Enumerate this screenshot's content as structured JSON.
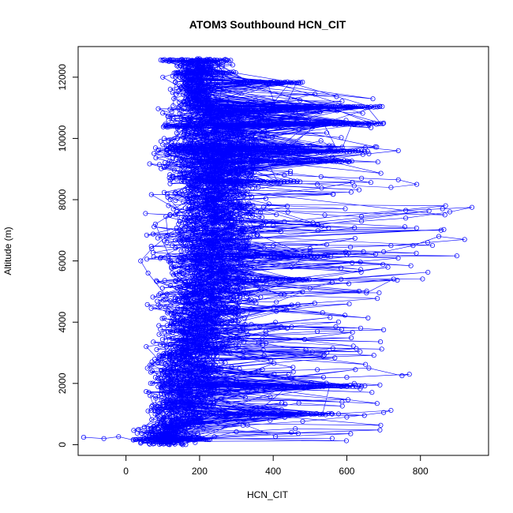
{
  "chart_data": {
    "type": "scatter",
    "title": "ATOM3 Southbound HCN_CIT",
    "xlabel": "HCN_CIT",
    "ylabel": "Altitude (m)",
    "xlim": [
      -130,
      985
    ],
    "ylim": [
      -350,
      13000
    ],
    "x_ticks": [
      0,
      200,
      400,
      600,
      800
    ],
    "y_ticks": [
      0,
      2000,
      4000,
      6000,
      8000,
      10000,
      12000
    ],
    "x_tick_labels": [
      "0",
      "200",
      "400",
      "600",
      "800"
    ],
    "y_tick_labels": [
      "0",
      "2000",
      "4000",
      "6000",
      "8000",
      "10000",
      "12000"
    ],
    "grid": false,
    "legend": false,
    "series": [
      {
        "marker": "open-circle-with-line",
        "color": "#0000ff",
        "points": [
          [
            -115,
            240
          ],
          [
            -60,
            200
          ],
          [
            -20,
            260
          ],
          [
            20,
            150
          ],
          [
            60,
            120
          ],
          [
            110,
            80
          ],
          [
            150,
            130
          ],
          [
            200,
            190
          ],
          [
            240,
            260
          ],
          [
            300,
            420
          ],
          [
            460,
            520
          ],
          [
            690,
            480
          ],
          [
            50,
            220
          ],
          [
            90,
            300
          ],
          [
            140,
            380
          ],
          [
            210,
            520
          ],
          [
            330,
            640
          ],
          [
            480,
            760
          ],
          [
            600,
            900
          ],
          [
            700,
            1050
          ],
          [
            720,
            1120
          ],
          [
            560,
            1000
          ],
          [
            420,
            950
          ],
          [
            300,
            980
          ],
          [
            200,
            930
          ],
          [
            120,
            870
          ],
          [
            70,
            820
          ],
          [
            60,
            1100
          ],
          [
            100,
            1300
          ],
          [
            160,
            1500
          ],
          [
            230,
            1650
          ],
          [
            330,
            1750
          ],
          [
            460,
            1850
          ],
          [
            600,
            1900
          ],
          [
            690,
            1950
          ],
          [
            620,
            2000
          ],
          [
            500,
            1950
          ],
          [
            390,
            1900
          ],
          [
            280,
            1880
          ],
          [
            180,
            1800
          ],
          [
            110,
            1700
          ],
          [
            80,
            2200
          ],
          [
            140,
            2300
          ],
          [
            230,
            2350
          ],
          [
            360,
            2400
          ],
          [
            520,
            2450
          ],
          [
            660,
            2500
          ],
          [
            750,
            2250
          ],
          [
            770,
            2300
          ],
          [
            600,
            2200
          ],
          [
            450,
            2150
          ],
          [
            300,
            2050
          ],
          [
            190,
            2000
          ],
          [
            70,
            2600
          ],
          [
            100,
            2900
          ],
          [
            150,
            3100
          ],
          [
            220,
            3300
          ],
          [
            300,
            3500
          ],
          [
            380,
            3700
          ],
          [
            450,
            3850
          ],
          [
            570,
            3850
          ],
          [
            700,
            3750
          ],
          [
            520,
            3700
          ],
          [
            380,
            3600
          ],
          [
            260,
            3500
          ],
          [
            160,
            3300
          ],
          [
            90,
            3600
          ],
          [
            130,
            4000
          ],
          [
            190,
            4300
          ],
          [
            270,
            4500
          ],
          [
            350,
            4700
          ],
          [
            430,
            4900
          ],
          [
            500,
            5100
          ],
          [
            560,
            5300
          ],
          [
            470,
            5400
          ],
          [
            380,
            5350
          ],
          [
            280,
            5200
          ],
          [
            190,
            5000
          ],
          [
            120,
            4700
          ],
          [
            60,
            5600
          ],
          [
            40,
            6000
          ],
          [
            70,
            6400
          ],
          [
            110,
            6800
          ],
          [
            160,
            7000
          ],
          [
            220,
            6900
          ],
          [
            300,
            6700
          ],
          [
            400,
            6500
          ],
          [
            500,
            6300
          ],
          [
            600,
            6200
          ],
          [
            700,
            6300
          ],
          [
            780,
            6500
          ],
          [
            850,
            6800
          ],
          [
            920,
            6700
          ],
          [
            820,
            6600
          ],
          [
            720,
            6500
          ],
          [
            610,
            6450
          ],
          [
            500,
            6400
          ],
          [
            400,
            6250
          ],
          [
            300,
            6050
          ],
          [
            200,
            5900
          ],
          [
            130,
            5800
          ],
          [
            80,
            7200
          ],
          [
            120,
            7500
          ],
          [
            180,
            7700
          ],
          [
            260,
            7800
          ],
          [
            350,
            7700
          ],
          [
            440,
            7600
          ],
          [
            540,
            7500
          ],
          [
            640,
            7450
          ],
          [
            760,
            7650
          ],
          [
            860,
            7700
          ],
          [
            940,
            7750
          ],
          [
            880,
            7600
          ],
          [
            760,
            7400
          ],
          [
            640,
            7300
          ],
          [
            520,
            7200
          ],
          [
            400,
            7150
          ],
          [
            290,
            7100
          ],
          [
            190,
            7050
          ],
          [
            120,
            8000
          ],
          [
            160,
            8300
          ],
          [
            230,
            8500
          ],
          [
            320,
            8600
          ],
          [
            420,
            8550
          ],
          [
            520,
            8500
          ],
          [
            620,
            8450
          ],
          [
            720,
            8400
          ],
          [
            790,
            8500
          ],
          [
            740,
            8650
          ],
          [
            640,
            8700
          ],
          [
            530,
            8750
          ],
          [
            430,
            8800
          ],
          [
            330,
            8850
          ],
          [
            240,
            8900
          ],
          [
            160,
            8850
          ],
          [
            110,
            9100
          ],
          [
            150,
            9300
          ],
          [
            210,
            9450
          ],
          [
            290,
            9550
          ],
          [
            380,
            9650
          ],
          [
            470,
            9700
          ],
          [
            560,
            9750
          ],
          [
            650,
            9700
          ],
          [
            740,
            9600
          ],
          [
            660,
            9500
          ],
          [
            560,
            9400
          ],
          [
            460,
            9300
          ],
          [
            360,
            9250
          ],
          [
            260,
            9200
          ],
          [
            170,
            9150
          ],
          [
            100,
            9800
          ],
          [
            140,
            10000
          ],
          [
            200,
            10200
          ],
          [
            280,
            10350
          ],
          [
            360,
            10450
          ],
          [
            460,
            10500
          ],
          [
            560,
            10500
          ],
          [
            660,
            10480
          ],
          [
            700,
            10500
          ],
          [
            620,
            10450
          ],
          [
            520,
            10420
          ],
          [
            420,
            10400
          ],
          [
            320,
            10380
          ],
          [
            220,
            10350
          ],
          [
            140,
            10330
          ],
          [
            120,
            10700
          ],
          [
            180,
            10850
          ],
          [
            260,
            10900
          ],
          [
            340,
            10920
          ],
          [
            420,
            10950
          ],
          [
            520,
            11000
          ],
          [
            600,
            11030
          ],
          [
            690,
            11050
          ],
          [
            610,
            11000
          ],
          [
            500,
            10980
          ],
          [
            400,
            10960
          ],
          [
            300,
            10930
          ],
          [
            200,
            10900
          ],
          [
            130,
            11300
          ],
          [
            180,
            11500
          ],
          [
            240,
            11650
          ],
          [
            300,
            11750
          ],
          [
            380,
            11820
          ],
          [
            470,
            11830
          ],
          [
            400,
            11800
          ],
          [
            320,
            11780
          ],
          [
            250,
            11750
          ],
          [
            190,
            11700
          ],
          [
            150,
            11650
          ],
          [
            100,
            12000
          ],
          [
            140,
            12150
          ],
          [
            200,
            12250
          ],
          [
            260,
            12350
          ],
          [
            290,
            12400
          ],
          [
            250,
            12450
          ],
          [
            210,
            12500
          ],
          [
            180,
            12550
          ],
          [
            150,
            12560
          ],
          [
            120,
            12570
          ],
          [
            100,
            12560
          ],
          [
            140,
            12540
          ],
          [
            190,
            12550
          ],
          [
            240,
            12560
          ],
          [
            270,
            12580
          ]
        ],
        "dense_bands": [
          {
            "y": 12550,
            "x_from": 95,
            "x_to": 285,
            "step": 5
          },
          {
            "y": 12150,
            "x_from": 130,
            "x_to": 300,
            "step": 6
          },
          {
            "y": 11830,
            "x_from": 300,
            "x_to": 480,
            "step": 6
          },
          {
            "y": 11030,
            "x_from": 420,
            "x_to": 700,
            "step": 6
          },
          {
            "y": 10920,
            "x_from": 250,
            "x_to": 460,
            "step": 8
          },
          {
            "y": 10480,
            "x_from": 380,
            "x_to": 700,
            "step": 6
          },
          {
            "y": 10400,
            "x_from": 100,
            "x_to": 320,
            "step": 5
          },
          {
            "y": 9750,
            "x_from": 110,
            "x_to": 480,
            "step": 5
          },
          {
            "y": 9580,
            "x_from": 120,
            "x_to": 660,
            "step": 8
          },
          {
            "y": 9250,
            "x_from": 180,
            "x_to": 620,
            "step": 7
          },
          {
            "y": 8600,
            "x_from": 150,
            "x_to": 470,
            "step": 9
          },
          {
            "y": 6150,
            "x_from": 250,
            "x_to": 560,
            "step": 9
          },
          {
            "y": 5400,
            "x_from": 300,
            "x_to": 500,
            "step": 9
          },
          {
            "y": 1920,
            "x_from": 280,
            "x_to": 650,
            "step": 8
          },
          {
            "y": 1000,
            "x_from": 150,
            "x_to": 560,
            "step": 8
          },
          {
            "y": 180,
            "x_from": 20,
            "x_to": 230,
            "step": 4
          }
        ]
      }
    ]
  }
}
